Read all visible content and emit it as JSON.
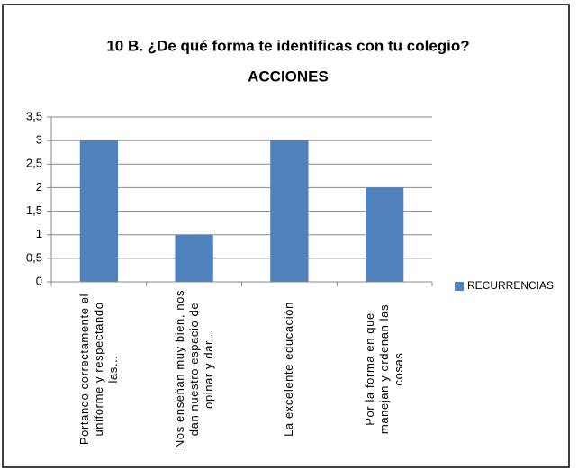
{
  "chart_data": {
    "type": "bar",
    "title": "10 B. ¿De qué forma te identificas con tu colegio?",
    "subtitle": "ACCIONES",
    "categories": [
      "Portando correctamente el uniforme y respectando las...",
      "Nos enseñan muy bien, nos dan nuestro espacio de opinar y dar...",
      "La excelente educación",
      "Por la forma en que manejan y ordenan las cosas"
    ],
    "series": [
      {
        "name": "RECURRENCIAS",
        "color": "#4f81bd",
        "values": [
          3,
          1,
          3,
          2
        ]
      }
    ],
    "ylim": [
      0,
      3.5
    ],
    "yticks": [
      0,
      {
        "value": 0.5,
        "label": "0,5"
      },
      1,
      {
        "value": 1.5,
        "label": "1,5"
      },
      2,
      {
        "value": 2.5,
        "label": "2,5"
      },
      3,
      {
        "value": 3.5,
        "label": "3,5"
      }
    ],
    "grid": true,
    "legend": "right"
  }
}
